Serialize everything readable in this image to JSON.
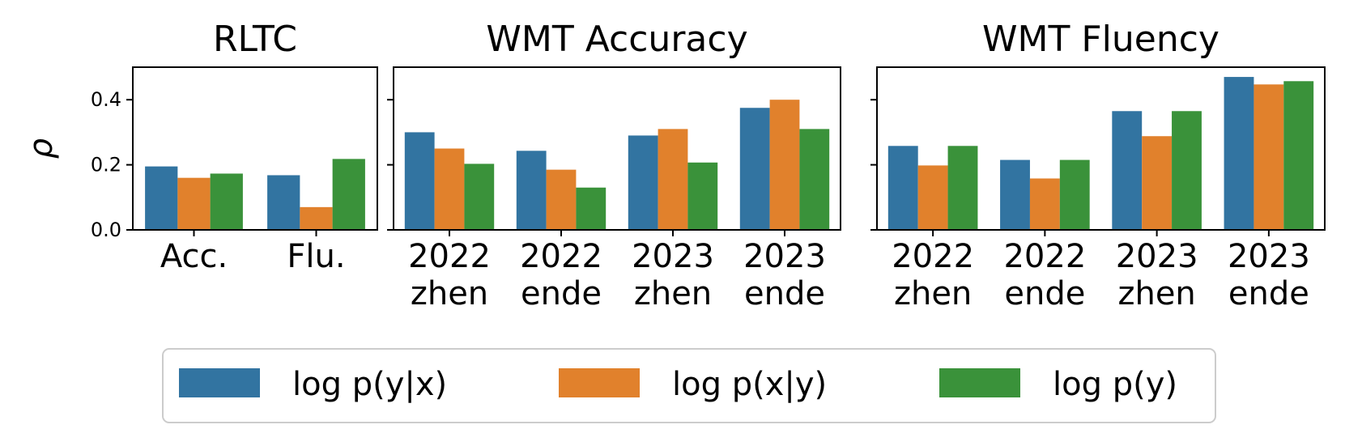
{
  "chart_data": [
    {
      "type": "bar",
      "title": "RLTC",
      "ylabel": "ρ",
      "categories": [
        [
          "Acc."
        ],
        [
          "Flu."
        ]
      ],
      "series": [
        {
          "name": "log p(y|x)",
          "color": "#3274a1",
          "values": [
            0.195,
            0.168
          ]
        },
        {
          "name": "log p(x|y)",
          "color": "#e1812c",
          "values": [
            0.16,
            0.07
          ]
        },
        {
          "name": "log p(y)",
          "color": "#3a923a",
          "values": [
            0.173,
            0.218
          ]
        }
      ],
      "ylim": [
        0,
        0.5
      ],
      "yticks": [
        {
          "value": 0,
          "label": "0.0"
        },
        0.2,
        0.4
      ]
    },
    {
      "type": "bar",
      "title": "WMT Accuracy",
      "categories": [
        [
          "2022",
          "zhen"
        ],
        [
          "2022",
          "ende"
        ],
        [
          "2023",
          "zhen"
        ],
        [
          "2023",
          "ende"
        ]
      ],
      "series": [
        {
          "color": "#3274a1",
          "values": [
            0.3,
            0.243,
            0.29,
            0.375
          ]
        },
        {
          "color": "#e1812c",
          "values": [
            0.25,
            0.185,
            0.31,
            0.4
          ]
        },
        {
          "color": "#3a923a",
          "values": [
            0.203,
            0.13,
            0.207,
            0.31
          ]
        }
      ],
      "ylim": [
        0,
        0.5
      ],
      "yticks": [
        0,
        0.2,
        0.4
      ]
    },
    {
      "type": "bar",
      "title": "WMT Fluency",
      "categories": [
        [
          "2022",
          "zhen"
        ],
        [
          "2022",
          "ende"
        ],
        [
          "2023",
          "zhen"
        ],
        [
          "2023",
          "ende"
        ]
      ],
      "series": [
        {
          "color": "#3274a1",
          "values": [
            0.258,
            0.215,
            0.365,
            0.47
          ]
        },
        {
          "color": "#e1812c",
          "values": [
            0.198,
            0.158,
            0.288,
            0.447
          ]
        },
        {
          "color": "#3a923a",
          "values": [
            0.258,
            0.215,
            0.365,
            0.457
          ]
        }
      ],
      "ylim": [
        0,
        0.5
      ],
      "yticks": [
        0,
        0.2,
        0.4
      ]
    }
  ]
}
